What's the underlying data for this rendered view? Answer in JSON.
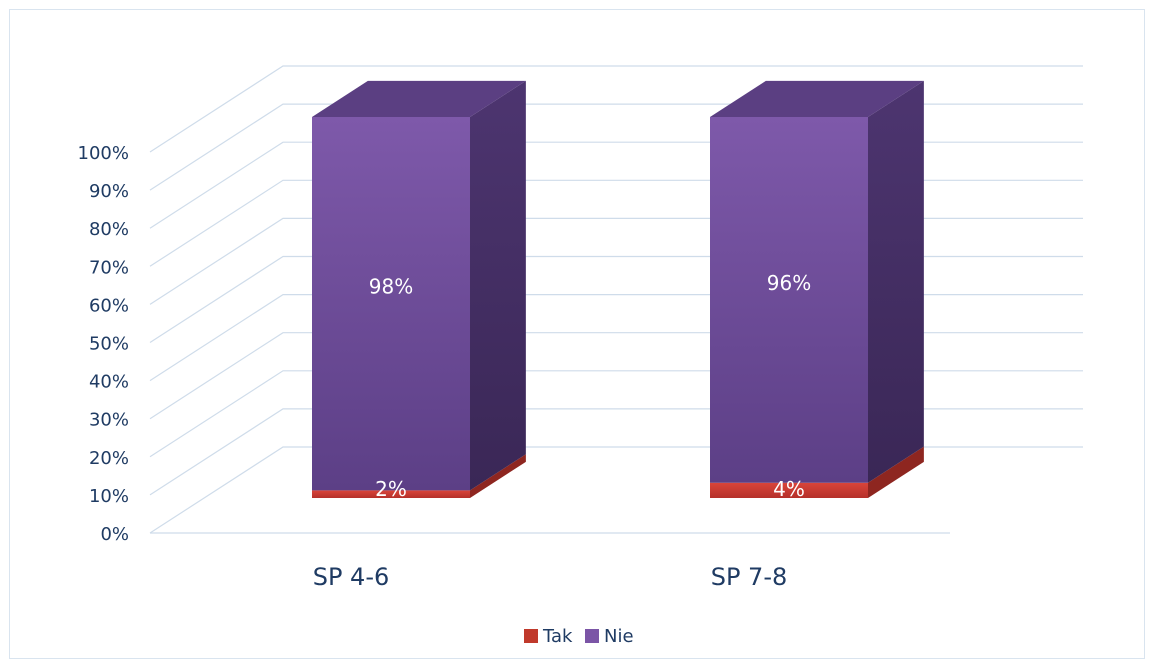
{
  "chart_data": {
    "type": "bar",
    "stacked": true,
    "percent": true,
    "three_d": true,
    "categories": [
      "SP 4-6",
      "SP 7-8"
    ],
    "series": [
      {
        "name": "Tak",
        "values": [
          2,
          4
        ],
        "labels": [
          "2%",
          "4%"
        ],
        "color": "#c0392b"
      },
      {
        "name": "Nie",
        "values": [
          98,
          96
        ],
        "labels": [
          "98%",
          "96%"
        ],
        "color": "#7b55a6"
      }
    ],
    "yticks": [
      "0%",
      "10%",
      "20%",
      "30%",
      "40%",
      "50%",
      "60%",
      "70%",
      "80%",
      "90%",
      "100%"
    ],
    "ylim": [
      0,
      100
    ],
    "grid": true,
    "legend": "bottom",
    "title": "",
    "xlabel": "",
    "ylabel": ""
  }
}
